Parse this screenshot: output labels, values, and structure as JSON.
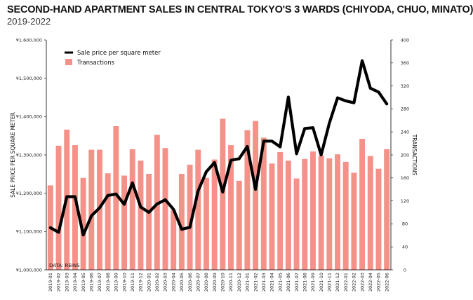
{
  "title": "SECOND-HAND APARTMENT SALES IN CENTRAL TOKYO'S 3 WARDS (CHIYODA, CHUO, MINATO)",
  "subtitle": "2019-2022",
  "source": "DATA: REINS",
  "colors": {
    "bar": "#f4928a",
    "line": "#000000",
    "background": "#ffffff"
  },
  "chart_data": {
    "type": "bar+line",
    "categories": [
      "2019-01",
      "2019-02",
      "2019-03",
      "2019-04",
      "2019-05",
      "2019-06",
      "2019-07",
      "2019-08",
      "2019-09",
      "2019-10",
      "2019-11",
      "2019-12",
      "2020-01",
      "2020-02",
      "2020-03",
      "2020-04",
      "2020-05",
      "2020-06",
      "2020-07",
      "2020-08",
      "2020-09",
      "2020-10",
      "2020-11",
      "2020-12",
      "2021-01",
      "2021-02",
      "2021-03",
      "2021-04",
      "2021-05",
      "2021-06",
      "2021-07",
      "2021-08",
      "2021-09",
      "2021-10",
      "2021-11",
      "2021-12",
      "2022-01",
      "2022-02",
      "2022-03",
      "2022-04",
      "2022-05",
      "2022-06"
    ],
    "left_axis": {
      "label": "SALE PRICE PER SQUARE METER",
      "ylim": [
        1000000,
        1600000
      ],
      "ticks": [
        "¥1,000,000",
        "¥1,100,000",
        "¥1,200,000",
        "¥1,300,000",
        "¥1,400,000",
        "¥1,500,000",
        "¥1,600,000"
      ]
    },
    "right_axis": {
      "label": "TRANSACTIONS",
      "ylim": [
        0,
        400
      ],
      "ticks": [
        "0",
        "40",
        "80",
        "120",
        "160",
        "200",
        "240",
        "280",
        "320",
        "360",
        "400"
      ]
    },
    "series": [
      {
        "name": "Transactions",
        "type": "bar",
        "axis": "right",
        "values": [
          147,
          216,
          244,
          217,
          160,
          209,
          209,
          168,
          250,
          164,
          210,
          190,
          167,
          235,
          212,
          104,
          167,
          183,
          209,
          160,
          192,
          263,
          217,
          155,
          243,
          259,
          230,
          185,
          205,
          190,
          159,
          193,
          206,
          199,
          194,
          201,
          188,
          169,
          228,
          198,
          176,
          210
        ]
      },
      {
        "name": "Sale price per square meter",
        "type": "line",
        "axis": "left",
        "values": [
          1110000,
          1098000,
          1191000,
          1191000,
          1091000,
          1141000,
          1162000,
          1194000,
          1198000,
          1171000,
          1227000,
          1164000,
          1150000,
          1172000,
          1183000,
          1158000,
          1106000,
          1111000,
          1206000,
          1256000,
          1280000,
          1203000,
          1286000,
          1290000,
          1322000,
          1210000,
          1336000,
          1336000,
          1321000,
          1451000,
          1303000,
          1369000,
          1371000,
          1300000,
          1383000,
          1449000,
          1441000,
          1436000,
          1546000,
          1474000,
          1464000,
          1433000
        ]
      }
    ],
    "legend": {
      "placement": "top-left"
    },
    "grid": false
  }
}
